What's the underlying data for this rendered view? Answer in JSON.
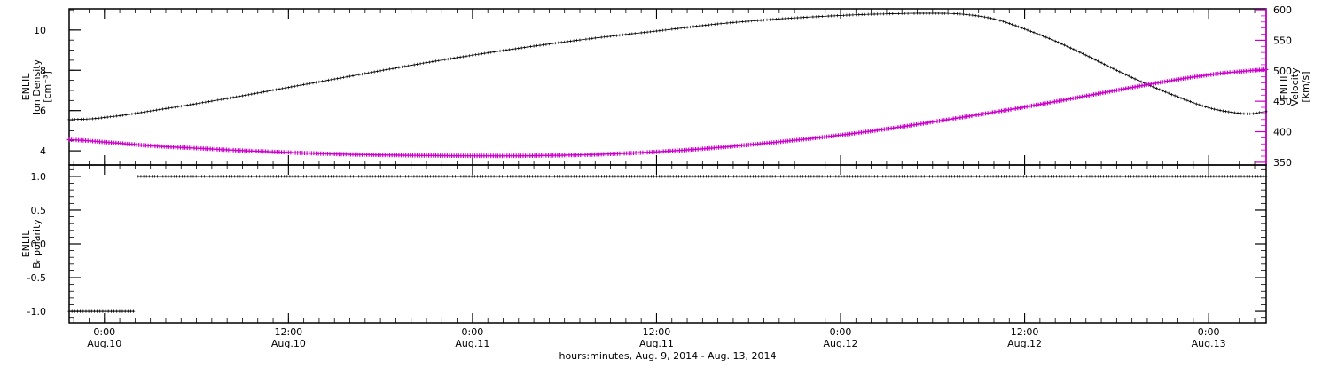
{
  "chart_data": {
    "type": "line",
    "title": "",
    "xlabel": "hours:minutes, Aug.  9, 2014 - Aug. 13, 2014",
    "x_unit_note": "hours since 2014-08-09 00:00 UT",
    "x_range": [
      21.7,
      99.75
    ],
    "x_minor_step": 1,
    "x_major_ticks": [
      {
        "t": 24,
        "time": "0:00",
        "date": "Aug.10"
      },
      {
        "t": 36,
        "time": "12:00",
        "date": "Aug.10"
      },
      {
        "t": 48,
        "time": "0:00",
        "date": "Aug.11"
      },
      {
        "t": 60,
        "time": "12:00",
        "date": "Aug.11"
      },
      {
        "t": 72,
        "time": "0:00",
        "date": "Aug.12"
      },
      {
        "t": 84,
        "time": "12:00",
        "date": "Aug.12"
      },
      {
        "t": 96,
        "time": "0:00",
        "date": "Aug.13"
      }
    ],
    "colors": {
      "frame": "#000000",
      "density": "#000000",
      "velocity": "#cc00cc",
      "polarity": "#000000"
    },
    "panels": [
      {
        "name": "density-velocity",
        "axes": {
          "left": {
            "label_lines": [
              "ENLIL",
              "Ion Density",
              "[cm⁻³]"
            ],
            "range": [
              3.3,
              11.05
            ],
            "minor_step": 0.5,
            "color": "#000000",
            "majors": [
              {
                "v": 4,
                "label": "4"
              },
              {
                "v": 6,
                "label": "6"
              },
              {
                "v": 8,
                "label": "8"
              },
              {
                "v": 10,
                "label": "10"
              }
            ]
          },
          "right": {
            "label_lines": [
              "ENLIL",
              "Velocity",
              "[km/s]"
            ],
            "range": [
              345.5,
              601.5
            ],
            "minor_step": 10,
            "color": "#cc00cc",
            "title_color": "#000000",
            "majors": [
              {
                "v": 350,
                "label": "350"
              },
              {
                "v": 400,
                "label": "400"
              },
              {
                "v": 450,
                "label": "450"
              },
              {
                "v": 500,
                "label": "500"
              },
              {
                "v": 550,
                "label": "550"
              },
              {
                "v": 600,
                "label": "600"
              }
            ]
          }
        },
        "series": [
          {
            "name": "ion-density",
            "axis": "left",
            "color": "#000000",
            "marker_size": 1.6,
            "marker_stroke": 0.7,
            "line_width": 0.7,
            "sample_step": 0.2,
            "points": [
              [
                21.7,
                5.55
              ],
              [
                24,
                5.66
              ],
              [
                28,
                6.1
              ],
              [
                32,
                6.6
              ],
              [
                36,
                7.15
              ],
              [
                40,
                7.7
              ],
              [
                44,
                8.25
              ],
              [
                48,
                8.75
              ],
              [
                52,
                9.2
              ],
              [
                56,
                9.6
              ],
              [
                60,
                9.95
              ],
              [
                64,
                10.3
              ],
              [
                68,
                10.55
              ],
              [
                72,
                10.72
              ],
              [
                75,
                10.8
              ],
              [
                78,
                10.83
              ],
              [
                80,
                10.78
              ],
              [
                82,
                10.55
              ],
              [
                84,
                10.05
              ],
              [
                86,
                9.45
              ],
              [
                88,
                8.75
              ],
              [
                90,
                8.0
              ],
              [
                92,
                7.3
              ],
              [
                94,
                6.68
              ],
              [
                96,
                6.15
              ],
              [
                97.5,
                5.92
              ],
              [
                98.7,
                5.84
              ],
              [
                99.75,
                5.95
              ]
            ]
          },
          {
            "name": "velocity",
            "axis": "right",
            "color": "#cc00cc",
            "marker_size": 2.4,
            "marker_stroke": 1.2,
            "line_width": 1.2,
            "sample_step": 0.15,
            "points": [
              [
                21.7,
                387
              ],
              [
                24,
                383
              ],
              [
                27,
                377
              ],
              [
                30,
                373
              ],
              [
                33,
                369
              ],
              [
                36,
                366
              ],
              [
                39,
                363.5
              ],
              [
                42,
                362
              ],
              [
                45,
                361
              ],
              [
                48,
                360.5
              ],
              [
                51,
                360.5
              ],
              [
                54,
                361.5
              ],
              [
                57,
                363.5
              ],
              [
                60,
                367
              ],
              [
                63,
                372
              ],
              [
                66,
                378.5
              ],
              [
                69,
                386
              ],
              [
                72,
                394.5
              ],
              [
                75,
                404.5
              ],
              [
                78,
                416
              ],
              [
                81,
                428
              ],
              [
                84,
                440.5
              ],
              [
                87,
                454
              ],
              [
                90,
                468
              ],
              [
                93,
                481.5
              ],
              [
                96,
                493
              ],
              [
                98,
                498.5
              ],
              [
                99.75,
                502
              ]
            ]
          }
        ]
      },
      {
        "name": "br-polarity",
        "axes": {
          "left": {
            "label_lines": [
              "ENLIL",
              "Bᵣ polarity"
            ],
            "range": [
              -1.17,
              1.17
            ],
            "minor_step": 0.1,
            "color": "#000000",
            "majors": [
              {
                "v": 1,
                "label": "1.0"
              },
              {
                "v": 0.5,
                "label": "0.5"
              },
              {
                "v": 0,
                "label": "0.0"
              },
              {
                "v": -0.5,
                "label": "-0.5"
              },
              {
                "v": -1,
                "label": "-1.0"
              }
            ]
          },
          "right": {
            "mirror": true
          }
        },
        "series": [
          {
            "name": "br-negative",
            "axis": "left",
            "color": "#000000",
            "marker_size": 1.6,
            "marker_stroke": 0.8,
            "line_width": 1.0,
            "sample_step": 0.18,
            "points": [
              [
                21.7,
                -1
              ],
              [
                25.9,
                -1
              ]
            ]
          },
          {
            "name": "br-positive",
            "axis": "left",
            "color": "#000000",
            "marker_size": 1.6,
            "marker_stroke": 0.8,
            "line_width": 1.0,
            "sample_step": 0.18,
            "points": [
              [
                26.2,
                1
              ],
              [
                99.75,
                1
              ]
            ]
          }
        ]
      }
    ]
  }
}
